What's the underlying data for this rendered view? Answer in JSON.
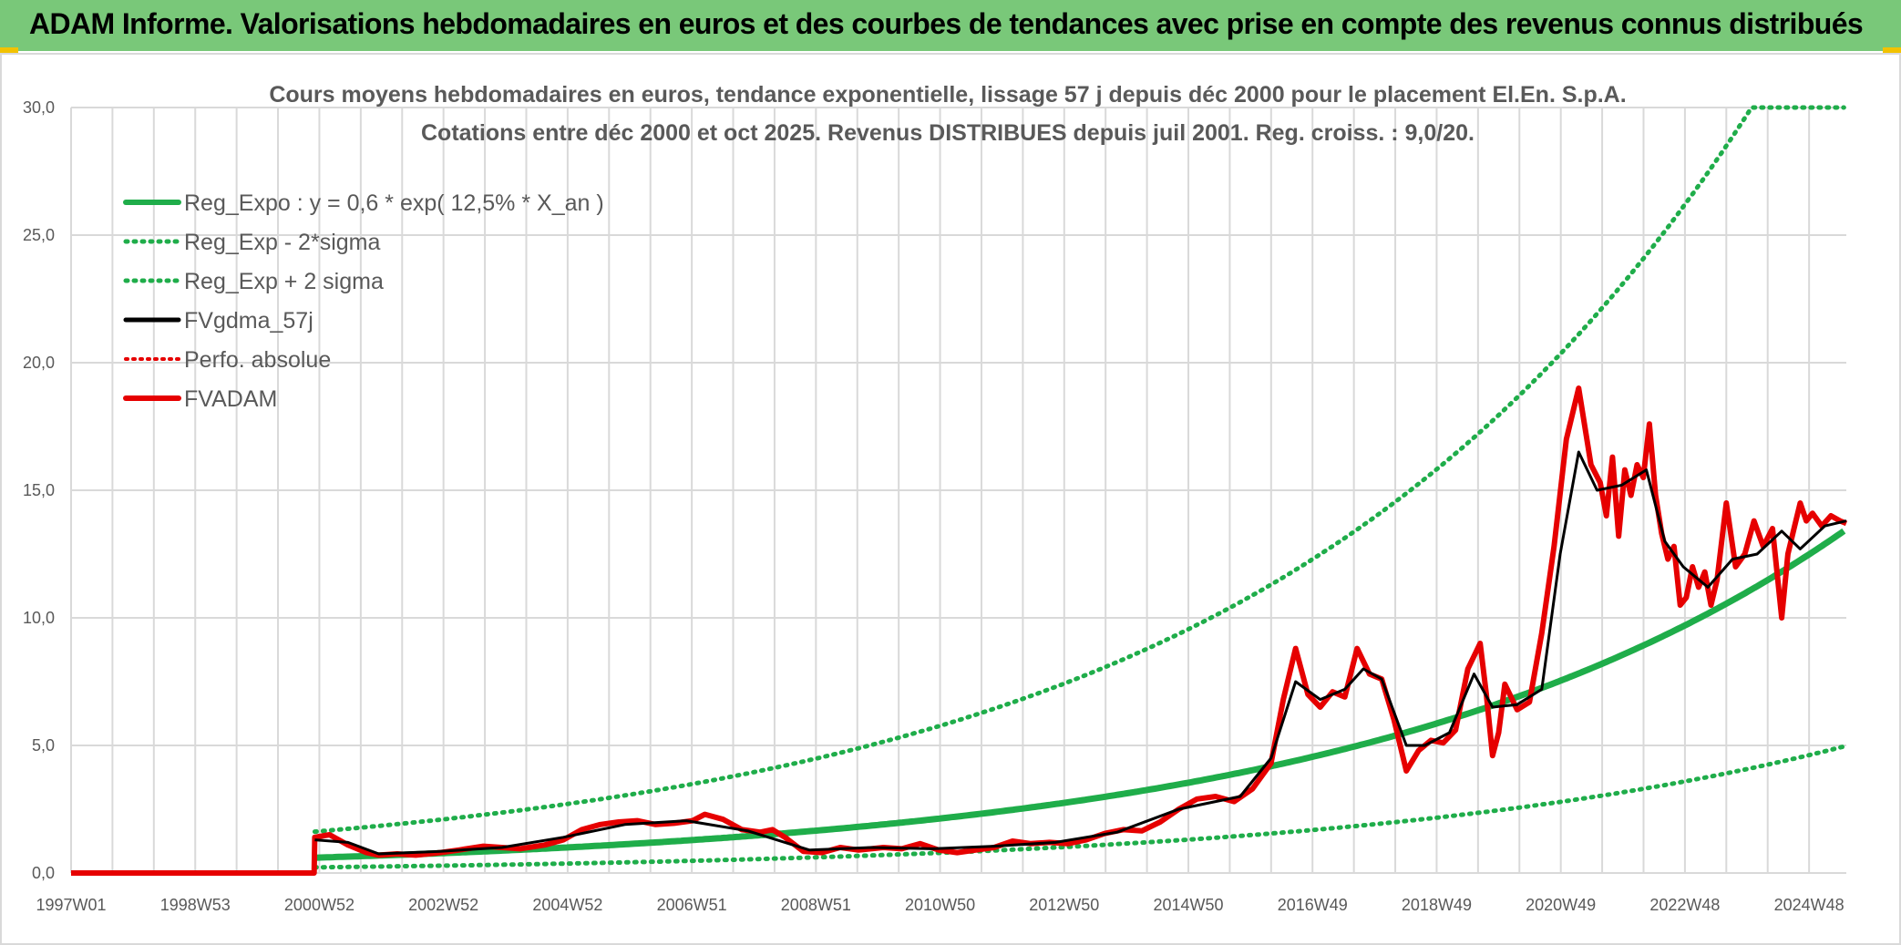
{
  "header": {
    "banner_title": "ADAM Informe. Valorisations hebdomadaires en euros et des courbes de tendances avec prise en compte des revenus connus distribués"
  },
  "colors": {
    "banner_bg": "#79c879",
    "trend_green": "#1fad4a",
    "smooth_black": "#000000",
    "value_red": "#e60000",
    "grid": "#d9d9d9"
  },
  "chart_data": {
    "type": "line",
    "title": "Cours moyens hebdomadaires en euros, tendance exponentielle, lissage 57 j depuis déc 2000 pour le placement El.En. S.p.A.",
    "subtitle": "Cotations entre déc 2000 et oct 2025. Revenus DISTRIBUES depuis juil 2001. Reg. croiss. : 9,0/20.",
    "xlabel": "",
    "ylabel": "",
    "x_ticks": [
      "1997W01",
      "1998W53",
      "2000W52",
      "2002W52",
      "2004W52",
      "2006W51",
      "2008W51",
      "2010W50",
      "2012W50",
      "2014W50",
      "2016W49",
      "2018W49",
      "2020W49",
      "2022W48",
      "2024W48"
    ],
    "xlim": [
      1997.0,
      2025.85
    ],
    "y_ticks": [
      "0,0",
      "5,0",
      "10,0",
      "15,0",
      "20,0",
      "25,0",
      "30,0"
    ],
    "ylim": [
      0,
      30
    ],
    "grid": true,
    "legend_position": "top-left",
    "legend": [
      {
        "label": "Reg_Expo : y = 0,6 * exp( 12,5% *  X_an )",
        "style": "solid-green"
      },
      {
        "label": "Reg_Exp - 2*sigma",
        "style": "dotted-green"
      },
      {
        "label": "Reg_Exp + 2 sigma",
        "style": "dotted-green"
      },
      {
        "label": "FVgdma_57j",
        "style": "solid-black"
      },
      {
        "label": "Perfo. absolue",
        "style": "dotted-red"
      },
      {
        "label": "FVADAM",
        "style": "solid-red"
      }
    ],
    "trend": {
      "base": 0.6,
      "rate": 0.125,
      "start_year": 2000.96,
      "end_year": 2025.85,
      "lower_factor": 0.37,
      "upper_factor": 2.7,
      "upper_cap": 30.0
    },
    "series": [
      {
        "name": "FVADAM",
        "x": [
          1997.0,
          2000.95,
          2000.96,
          2001.2,
          2001.5,
          2001.8,
          2002.0,
          2002.3,
          2002.6,
          2003.0,
          2003.3,
          2003.7,
          2004.0,
          2004.3,
          2004.7,
          2005.0,
          2005.3,
          2005.6,
          2005.9,
          2006.2,
          2006.5,
          2006.8,
          2007.1,
          2007.3,
          2007.6,
          2007.9,
          2008.2,
          2008.4,
          2008.6,
          2008.9,
          2009.2,
          2009.5,
          2009.8,
          2010.2,
          2010.5,
          2010.8,
          2011.1,
          2011.4,
          2011.7,
          2012.0,
          2012.3,
          2012.6,
          2012.9,
          2013.2,
          2013.5,
          2013.8,
          2014.1,
          2014.4,
          2014.7,
          2015.0,
          2015.3,
          2015.6,
          2015.9,
          2016.2,
          2016.5,
          2016.7,
          2016.9,
          2017.1,
          2017.3,
          2017.5,
          2017.7,
          2017.9,
          2018.1,
          2018.3,
          2018.5,
          2018.7,
          2018.9,
          2019.1,
          2019.3,
          2019.5,
          2019.7,
          2019.9,
          2020.0,
          2020.1,
          2020.2,
          2020.3,
          2020.5,
          2020.7,
          2020.9,
          2021.1,
          2021.3,
          2021.5,
          2021.7,
          2021.85,
          2021.95,
          2022.05,
          2022.15,
          2022.25,
          2022.35,
          2022.45,
          2022.55,
          2022.65,
          2022.75,
          2022.85,
          2022.95,
          2023.05,
          2023.15,
          2023.25,
          2023.35,
          2023.45,
          2023.55,
          2023.65,
          2023.75,
          2023.9,
          2024.05,
          2024.2,
          2024.35,
          2024.5,
          2024.65,
          2024.8,
          2024.9,
          2025.0,
          2025.1,
          2025.2,
          2025.3,
          2025.45,
          2025.6,
          2025.75,
          2025.85
        ],
        "y": [
          0.0,
          0.0,
          1.4,
          1.5,
          1.1,
          0.8,
          0.7,
          0.75,
          0.7,
          0.8,
          0.9,
          1.05,
          1.0,
          0.95,
          1.1,
          1.3,
          1.7,
          1.9,
          2.0,
          2.05,
          1.9,
          1.95,
          2.05,
          2.3,
          2.1,
          1.7,
          1.6,
          1.7,
          1.4,
          0.85,
          0.8,
          1.0,
          0.9,
          1.0,
          0.95,
          1.15,
          0.9,
          0.8,
          0.9,
          1.0,
          1.25,
          1.15,
          1.2,
          1.15,
          1.3,
          1.55,
          1.7,
          1.65,
          2.0,
          2.5,
          2.9,
          3.0,
          2.8,
          3.3,
          4.3,
          6.8,
          8.8,
          7.0,
          6.5,
          7.1,
          6.9,
          8.8,
          7.8,
          7.6,
          6.0,
          4.0,
          4.8,
          5.2,
          5.1,
          5.6,
          8.0,
          9.0,
          7.0,
          4.6,
          5.5,
          7.4,
          6.4,
          6.7,
          9.4,
          12.8,
          17.0,
          19.0,
          16.0,
          15.3,
          14.0,
          16.3,
          13.2,
          15.8,
          14.8,
          16.0,
          15.5,
          17.6,
          14.8,
          13.3,
          12.3,
          12.8,
          10.5,
          10.8,
          12.0,
          11.2,
          11.8,
          10.5,
          11.5,
          14.5,
          12.0,
          12.5,
          13.8,
          12.8,
          13.5,
          10.0,
          12.5,
          13.5,
          14.5,
          13.8,
          14.1,
          13.6,
          14.0,
          13.8,
          13.7
        ]
      },
      {
        "name": "FVgdma_57j",
        "x": [
          2000.96,
          2001.5,
          2002.0,
          2003.0,
          2004.0,
          2005.0,
          2006.0,
          2007.0,
          2008.0,
          2009.0,
          2010.0,
          2011.0,
          2012.0,
          2013.0,
          2014.0,
          2015.0,
          2016.0,
          2016.5,
          2016.9,
          2017.3,
          2017.7,
          2018.0,
          2018.3,
          2018.7,
          2019.0,
          2019.4,
          2019.8,
          2020.1,
          2020.5,
          2020.9,
          2021.2,
          2021.5,
          2021.8,
          2022.2,
          2022.6,
          2022.9,
          2023.2,
          2023.6,
          2024.0,
          2024.4,
          2024.8,
          2025.1,
          2025.5,
          2025.85
        ],
        "y": [
          1.3,
          1.2,
          0.75,
          0.85,
          1.0,
          1.4,
          1.9,
          2.05,
          1.65,
          0.9,
          1.0,
          0.95,
          1.05,
          1.2,
          1.6,
          2.5,
          3.0,
          4.5,
          7.5,
          6.8,
          7.2,
          8.0,
          7.6,
          5.0,
          5.0,
          5.5,
          7.8,
          6.5,
          6.6,
          7.2,
          12.5,
          16.5,
          15.0,
          15.2,
          15.8,
          13.0,
          12.0,
          11.2,
          12.3,
          12.5,
          13.4,
          12.7,
          13.6,
          13.8
        ]
      }
    ]
  }
}
